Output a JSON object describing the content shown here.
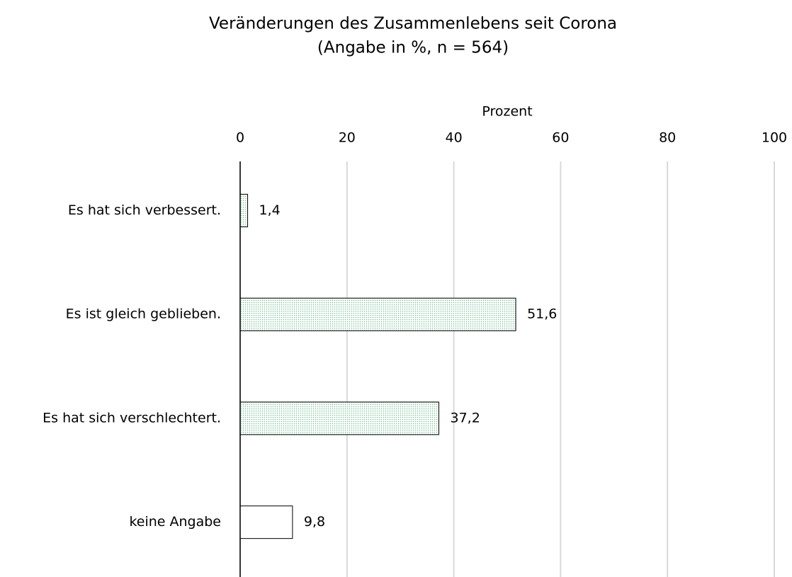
{
  "chart_data": {
    "type": "bar",
    "orientation": "horizontal",
    "title": "Veränderungen des Zusammenlebens seit Corona",
    "subtitle": "(Angabe in %, n = 564)",
    "x_label": "Prozent",
    "categories": [
      "Es hat sich verbessert.",
      "Es ist gleich geblieben.",
      "Es hat sich verschlechtert.",
      "keine Angabe"
    ],
    "values": [
      1.4,
      51.6,
      37.2,
      9.8
    ],
    "value_labels": [
      "1,4",
      "51,6",
      "37,2",
      "9,8"
    ],
    "colors": [
      "#7fbf9b",
      "#7fbf9b",
      "#7fbf9b",
      "#ffffff"
    ],
    "xlim": [
      0,
      100
    ],
    "xticks": [
      0,
      20,
      40,
      60,
      80,
      100
    ],
    "grid": true
  }
}
